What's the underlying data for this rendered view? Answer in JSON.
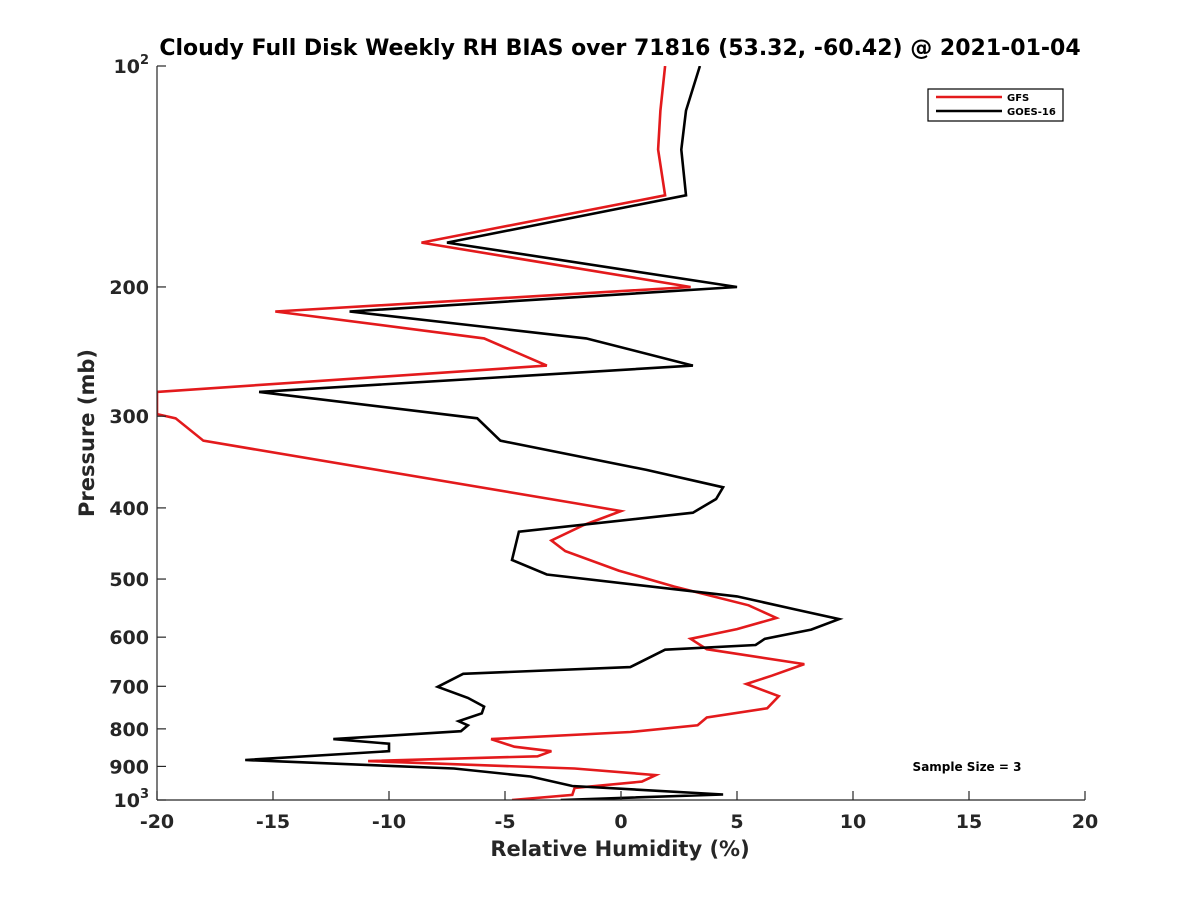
{
  "chart_data": {
    "type": "line",
    "title": "Cloudy Full Disk Weekly RH BIAS over 71816 (53.32, -60.42) @ 2021-01-04",
    "xlabel": "Relative Humidity (%)",
    "ylabel": "Pressure (mb)",
    "xlim": [
      -20,
      20
    ],
    "ylim": [
      100,
      1000
    ],
    "y_scale": "log",
    "y_reversed": true,
    "grid": false,
    "legend_position": "top-right",
    "x_ticks": [
      "-20",
      "-15",
      "-10",
      "-5",
      "0",
      "5",
      "10",
      "15",
      "20"
    ],
    "y_ticks": [
      {
        "value": 100,
        "base": "10",
        "exp": "2",
        "text": ""
      },
      {
        "value": 200,
        "text": "200"
      },
      {
        "value": 300,
        "text": "300"
      },
      {
        "value": 400,
        "text": "400"
      },
      {
        "value": 500,
        "text": "500"
      },
      {
        "value": 600,
        "text": "600"
      },
      {
        "value": 700,
        "text": "700"
      },
      {
        "value": 800,
        "text": "800"
      },
      {
        "value": 900,
        "text": "900"
      },
      {
        "value": 1000,
        "base": "10",
        "exp": "3",
        "text": ""
      }
    ],
    "annotation": "Sample Size = 3",
    "series": [
      {
        "name": "GFS",
        "color": "#e31a1c",
        "x": [
          1.9,
          1.7,
          1.6,
          1.9,
          -8.6,
          3.0,
          -14.9,
          -5.9,
          -3.2,
          -20.0,
          -20.0,
          -19.2,
          -18.0,
          -2.0,
          0.0,
          -1.6,
          -3.0,
          -2.4,
          -0.1,
          2.3,
          5.5,
          6.7,
          5.0,
          3.0,
          3.7,
          7.9,
          6.5,
          5.4,
          6.8,
          6.3,
          3.7,
          3.3,
          0.4,
          -5.6,
          -4.6,
          -3.0,
          -3.6,
          -10.9,
          -2.0,
          1.5,
          0.9,
          -2.0,
          -2.1,
          -4.7
        ],
        "y": [
          100,
          115,
          130,
          150,
          174,
          200,
          216,
          235,
          256,
          278,
          298,
          302,
          324,
          394,
          404,
          422,
          443,
          458,
          487,
          512,
          543,
          565,
          585,
          603,
          623,
          653,
          677,
          695,
          722,
          750,
          772,
          791,
          808,
          826,
          846,
          858,
          872,
          885,
          906,
          925,
          944,
          963,
          984,
          1000
        ]
      },
      {
        "name": "GOES-16",
        "color": "#000000",
        "x": [
          3.4,
          2.8,
          2.6,
          2.8,
          -7.5,
          5.0,
          -11.7,
          -1.5,
          3.1,
          -15.6,
          -6.2,
          -5.2,
          1.1,
          4.4,
          4.1,
          3.1,
          -4.4,
          -4.7,
          -3.2,
          5.0,
          7.5,
          9.4,
          8.2,
          6.2,
          5.8,
          1.9,
          0.4,
          -6.8,
          -7.9,
          -6.6,
          -5.9,
          -6.0,
          -7.0,
          -6.6,
          -6.9,
          -12.4,
          -10.0,
          -10.0,
          -16.2,
          -7.2,
          -3.9,
          -2.1,
          4.4,
          -2.6
        ],
        "y": [
          100,
          115,
          130,
          150,
          174,
          200,
          216,
          235,
          256,
          278,
          302,
          324,
          355,
          375,
          389,
          406,
          431,
          471,
          493,
          528,
          550,
          567,
          586,
          603,
          615,
          624,
          659,
          673,
          701,
          726,
          746,
          762,
          781,
          791,
          806,
          826,
          838,
          858,
          882,
          906,
          929,
          957,
          983,
          1000
        ]
      }
    ]
  }
}
